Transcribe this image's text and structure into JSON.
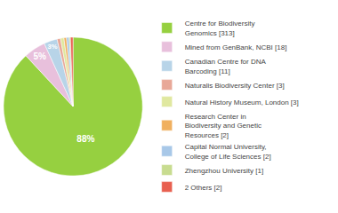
{
  "chart_data": {
    "type": "pie",
    "categories": [
      "Centre for Biodiversity\nGenomics [313]",
      "Mined from GenBank, NCBI [18]",
      "Canadian Centre for DNA\nBarcoding [11]",
      "Naturalis Biodiversity Center [3]",
      "Natural History Museum, London [3]",
      "Research Center in\nBiodiversity and Genetic\nResources [2]",
      "Capital Normal University,\nCollege of Life Sciences [2]",
      "Zhengzhou University [1]",
      "2 Others [2]"
    ],
    "values": [
      88.2,
      5.1,
      3.1,
      0.8,
      0.8,
      0.6,
      0.6,
      0.3,
      0.6
    ],
    "value_labels": [
      "88%",
      "5%",
      "3%",
      null,
      null,
      null,
      null,
      null,
      null
    ],
    "data_labels": true,
    "colors": [
      "#96d040",
      "#e8c0dc",
      "#b8d4e8",
      "#e8a898",
      "#e0e8a0",
      "#f0b060",
      "#a8c8e8",
      "#c8dc90",
      "#e86050"
    ],
    "legend": "right"
  }
}
